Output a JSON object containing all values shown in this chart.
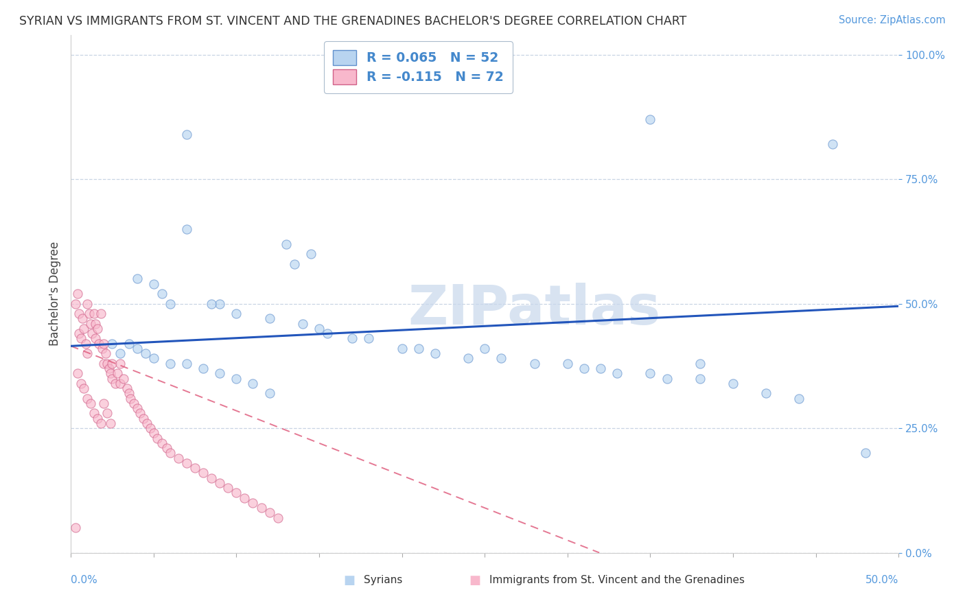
{
  "title": "SYRIAN VS IMMIGRANTS FROM ST. VINCENT AND THE GRENADINES BACHELOR'S DEGREE CORRELATION CHART",
  "source": "Source: ZipAtlas.com",
  "ylabel": "Bachelor's Degree",
  "legend1_label": "R = 0.065   N = 52",
  "legend2_label": "R = -0.115   N = 72",
  "legend1_fill": "#b8d4f0",
  "legend2_fill": "#f8b8cc",
  "dot1_fill": "#b8d4f0",
  "dot1_edge": "#6090cc",
  "dot2_fill": "#f8b8cc",
  "dot2_edge": "#d06088",
  "line1_color": "#2255bb",
  "line2_color": "#e06080",
  "watermark_color": "#c8d8ec",
  "grid_color": "#c8d4e4",
  "background_color": "#ffffff",
  "xlim": [
    0.0,
    0.5
  ],
  "ylim": [
    0.0,
    1.04
  ],
  "yticks": [
    0.0,
    0.25,
    0.5,
    0.75,
    1.0
  ],
  "line1_x": [
    0.0,
    0.5
  ],
  "line1_y": [
    0.415,
    0.495
  ],
  "line2_x0": 0.0,
  "line2_y0": 0.415,
  "line2_slope": -1.3,
  "syrians_x": [
    0.07,
    0.07,
    0.13,
    0.145,
    0.135,
    0.04,
    0.05,
    0.055,
    0.06,
    0.09,
    0.1,
    0.085,
    0.12,
    0.14,
    0.15,
    0.155,
    0.17,
    0.18,
    0.2,
    0.21,
    0.22,
    0.24,
    0.25,
    0.26,
    0.28,
    0.3,
    0.31,
    0.32,
    0.33,
    0.35,
    0.36,
    0.38,
    0.4,
    0.42,
    0.44,
    0.025,
    0.03,
    0.035,
    0.04,
    0.045,
    0.05,
    0.06,
    0.07,
    0.08,
    0.09,
    0.1,
    0.11,
    0.12,
    0.38,
    0.48,
    0.35,
    0.46
  ],
  "syrians_y": [
    0.84,
    0.65,
    0.62,
    0.6,
    0.58,
    0.55,
    0.54,
    0.52,
    0.5,
    0.5,
    0.48,
    0.5,
    0.47,
    0.46,
    0.45,
    0.44,
    0.43,
    0.43,
    0.41,
    0.41,
    0.4,
    0.39,
    0.41,
    0.39,
    0.38,
    0.38,
    0.37,
    0.37,
    0.36,
    0.36,
    0.35,
    0.35,
    0.34,
    0.32,
    0.31,
    0.42,
    0.4,
    0.42,
    0.41,
    0.4,
    0.39,
    0.38,
    0.38,
    0.37,
    0.36,
    0.35,
    0.34,
    0.32,
    0.38,
    0.2,
    0.87,
    0.82
  ],
  "vincent_x": [
    0.003,
    0.004,
    0.005,
    0.005,
    0.006,
    0.007,
    0.008,
    0.009,
    0.01,
    0.01,
    0.011,
    0.012,
    0.013,
    0.014,
    0.015,
    0.015,
    0.016,
    0.017,
    0.018,
    0.019,
    0.02,
    0.02,
    0.021,
    0.022,
    0.023,
    0.024,
    0.025,
    0.025,
    0.027,
    0.028,
    0.03,
    0.03,
    0.032,
    0.034,
    0.035,
    0.036,
    0.038,
    0.04,
    0.042,
    0.044,
    0.046,
    0.048,
    0.05,
    0.052,
    0.055,
    0.058,
    0.06,
    0.065,
    0.07,
    0.075,
    0.08,
    0.085,
    0.09,
    0.095,
    0.1,
    0.105,
    0.11,
    0.115,
    0.12,
    0.125,
    0.004,
    0.006,
    0.008,
    0.01,
    0.012,
    0.014,
    0.016,
    0.018,
    0.02,
    0.022,
    0.024,
    0.003
  ],
  "vincent_y": [
    0.5,
    0.52,
    0.48,
    0.44,
    0.43,
    0.47,
    0.45,
    0.42,
    0.4,
    0.5,
    0.48,
    0.46,
    0.44,
    0.48,
    0.46,
    0.43,
    0.45,
    0.42,
    0.48,
    0.41,
    0.42,
    0.38,
    0.4,
    0.38,
    0.37,
    0.36,
    0.38,
    0.35,
    0.34,
    0.36,
    0.34,
    0.38,
    0.35,
    0.33,
    0.32,
    0.31,
    0.3,
    0.29,
    0.28,
    0.27,
    0.26,
    0.25,
    0.24,
    0.23,
    0.22,
    0.21,
    0.2,
    0.19,
    0.18,
    0.17,
    0.16,
    0.15,
    0.14,
    0.13,
    0.12,
    0.11,
    0.1,
    0.09,
    0.08,
    0.07,
    0.36,
    0.34,
    0.33,
    0.31,
    0.3,
    0.28,
    0.27,
    0.26,
    0.3,
    0.28,
    0.26,
    0.05
  ]
}
